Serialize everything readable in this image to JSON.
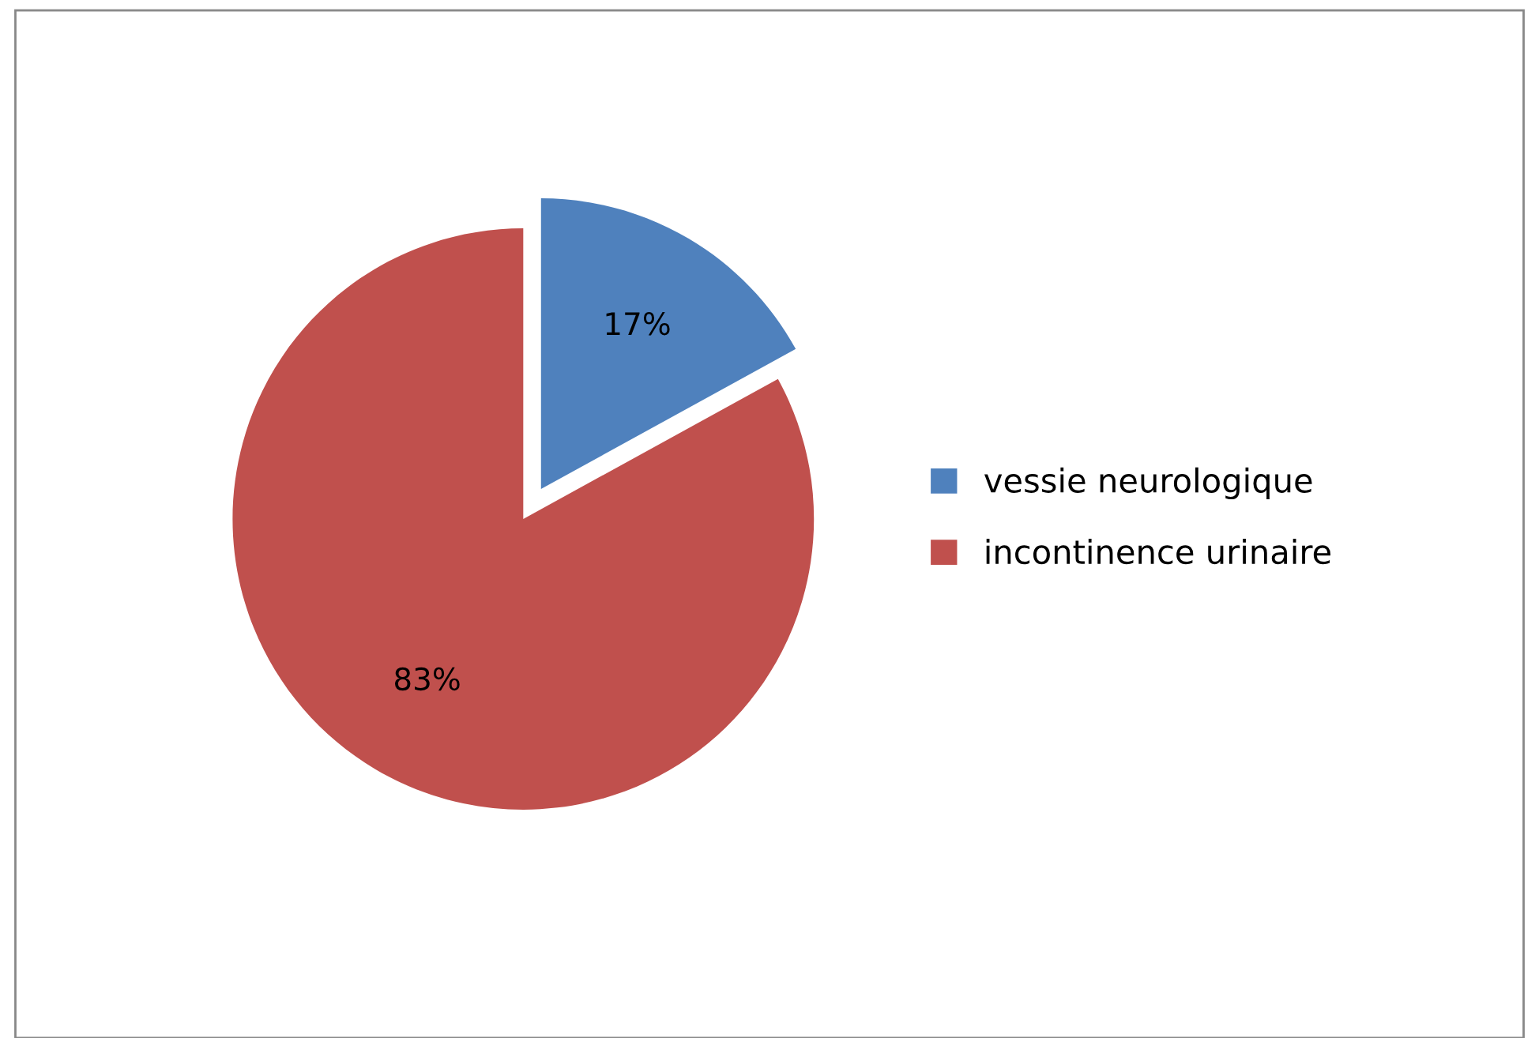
{
  "chart_data": {
    "type": "pie",
    "categories": [
      "vessie neurologique",
      "incontinence urinaire"
    ],
    "values": [
      17,
      83
    ],
    "colors": [
      "#4f81bd",
      "#c0504d"
    ],
    "value_labels": [
      "17%",
      "83%"
    ],
    "legend": "right"
  }
}
